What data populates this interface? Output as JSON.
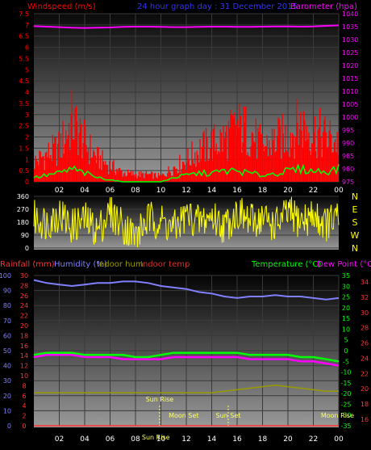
{
  "chart_data": [
    {
      "type": "bar",
      "title": "24 hour graph day : 31 December 2015",
      "left_axis_label": "Windspeed (m/s)",
      "right_axis_label": "Barometer (hpa)",
      "x_ticks": [
        "02",
        "04",
        "06",
        "08",
        "10",
        "12",
        "14",
        "16",
        "18",
        "20",
        "22",
        "00"
      ],
      "left_ticks": [
        "0",
        "0.5",
        "1",
        "1.5",
        "2",
        "2.5",
        "3",
        "3.5",
        "4",
        "4.5",
        "5",
        "5.5",
        "6",
        "6.5",
        "7",
        "7.5"
      ],
      "right_ticks": [
        "975",
        "980",
        "985",
        "990",
        "995",
        "1000",
        "1005",
        "1010",
        "1015",
        "1020",
        "1025",
        "1030",
        "1035",
        "1040"
      ],
      "ylim_left": [
        0,
        7.5
      ],
      "ylim_right": [
        975,
        1040
      ],
      "series": [
        {
          "label": "gust",
          "color": "#ff0000",
          "hours": [
            0,
            1,
            2,
            3,
            4,
            5,
            6,
            7,
            8,
            9,
            10,
            11,
            12,
            13,
            14,
            15,
            16,
            17,
            18,
            19,
            20,
            21,
            22,
            23,
            24
          ],
          "values": [
            1.1,
            1.5,
            1.9,
            3.4,
            2.2,
            1.3,
            0.9,
            0.5,
            0.4,
            0.4,
            0.3,
            0.8,
            1.2,
            1.8,
            2.1,
            2.4,
            3.0,
            2.8,
            1.9,
            2.3,
            2.6,
            3.2,
            2.8,
            2.5,
            2.2
          ]
        },
        {
          "label": "wind",
          "color": "#00ff00",
          "hours": [
            0,
            1,
            2,
            3,
            4,
            5,
            6,
            7,
            8,
            9,
            10,
            11,
            12,
            13,
            14,
            15,
            16,
            17,
            18,
            19,
            20,
            21,
            22,
            23,
            24
          ],
          "values": [
            0.2,
            0.3,
            0.4,
            0.6,
            0.4,
            0.2,
            0.1,
            0.0,
            0.0,
            0.0,
            0.0,
            0.2,
            0.3,
            0.4,
            0.4,
            0.5,
            0.5,
            0.4,
            0.3,
            0.4,
            0.5,
            0.6,
            0.5,
            0.5,
            0.6
          ]
        },
        {
          "label": "barometer",
          "color": "#ff00ff",
          "hours": [
            0,
            1,
            2,
            3,
            4,
            5,
            6,
            7,
            8,
            9,
            10,
            11,
            12,
            13,
            14,
            15,
            16,
            17,
            18,
            19,
            20,
            21,
            22,
            23,
            24
          ],
          "values": [
            1035.2,
            1035.0,
            1034.8,
            1034.6,
            1034.5,
            1034.6,
            1034.7,
            1034.9,
            1035.0,
            1035.0,
            1034.9,
            1034.8,
            1034.8,
            1034.9,
            1035.0,
            1035.0,
            1034.9,
            1034.9,
            1035.0,
            1035.1,
            1035.1,
            1035.0,
            1035.1,
            1035.3,
            1035.5
          ]
        }
      ]
    },
    {
      "type": "line",
      "label": "wind direction",
      "left_ticks": [
        "0",
        "90",
        "180",
        "270",
        "360"
      ],
      "right_labels": [
        "N",
        "W",
        "S",
        "E",
        "N"
      ],
      "ylim": [
        0,
        360
      ],
      "series": [
        {
          "color": "#ffff00",
          "hours": [
            0,
            1,
            2,
            3,
            4,
            5,
            6,
            7,
            8,
            9,
            10,
            11,
            12,
            13,
            14,
            15,
            16,
            17,
            18,
            19,
            20,
            21,
            22,
            23,
            24
          ],
          "values": [
            210,
            180,
            240,
            150,
            200,
            120,
            250,
            160,
            80,
            200,
            190,
            130,
            230,
            180,
            220,
            150,
            250,
            180,
            210,
            160,
            240,
            190,
            220,
            170,
            200
          ]
        }
      ]
    },
    {
      "type": "line",
      "legend": [
        "Rainfall (mm)",
        "Humidity (%)",
        "Indoor hum",
        "Indoor temp",
        "Temperature (°C)",
        "Dew Point (°C)"
      ],
      "x_ticks": [
        "02",
        "04",
        "06",
        "08",
        "10",
        "12",
        "14",
        "16",
        "18",
        "20",
        "22",
        "00"
      ],
      "humidity_ticks": [
        "0",
        "10",
        "20",
        "30",
        "40",
        "50",
        "60",
        "70",
        "80",
        "90",
        "100"
      ],
      "rain_ticks": [
        "0",
        "2",
        "4",
        "6",
        "8",
        "10",
        "12",
        "14",
        "16",
        "18",
        "20",
        "22",
        "24",
        "26",
        "28",
        "30"
      ],
      "temp_ticks": [
        "-35",
        "-30",
        "-25",
        "-20",
        "-15",
        "-10",
        "-5",
        "0",
        "5",
        "10",
        "15",
        "20",
        "25",
        "30",
        "35"
      ],
      "dew_ticks": [
        "16",
        "18",
        "20",
        "22",
        "24",
        "26",
        "28",
        "30",
        "32",
        "34"
      ],
      "ylim_humidity": [
        0,
        100
      ],
      "ylim_temp": [
        -35,
        35
      ],
      "annotations": [
        {
          "label": "Sun Rise",
          "hour": 9.9
        },
        {
          "label": "Sun Set",
          "hour": 15.3
        },
        {
          "label": "Moon Set",
          "hour": 11.8
        },
        {
          "label": "Moon Rise",
          "hour": 23.9
        },
        {
          "label": "Sun Rise",
          "hour": 9.6
        }
      ],
      "series": [
        {
          "label": "Humidity (%)",
          "color": "#8080ff",
          "hours": [
            0,
            1,
            2,
            3,
            4,
            5,
            6,
            7,
            8,
            9,
            10,
            11,
            12,
            13,
            14,
            15,
            16,
            17,
            18,
            19,
            20,
            21,
            22,
            23,
            24
          ],
          "values": [
            97,
            95,
            94,
            93,
            94,
            95,
            95,
            96,
            96,
            95,
            93,
            92,
            91,
            89,
            88,
            86,
            85,
            86,
            86,
            87,
            86,
            86,
            85,
            84,
            85
          ]
        },
        {
          "label": "Temperature (°C)",
          "color": "#00ff00",
          "hours": [
            0,
            1,
            2,
            3,
            4,
            5,
            6,
            7,
            8,
            9,
            10,
            11,
            12,
            13,
            14,
            15,
            16,
            17,
            18,
            19,
            20,
            21,
            22,
            23,
            24
          ],
          "values": [
            -2,
            -1,
            -1,
            -1,
            -2,
            -2,
            -2,
            -2,
            -3,
            -3,
            -2,
            -1,
            -1,
            -1,
            -1,
            -1,
            -1,
            -2,
            -2,
            -2,
            -2,
            -3,
            -3,
            -4,
            -5
          ]
        },
        {
          "label": "Dew Point (°C)",
          "color": "#ff00ff",
          "hours": [
            0,
            1,
            2,
            3,
            4,
            5,
            6,
            7,
            8,
            9,
            10,
            11,
            12,
            13,
            14,
            15,
            16,
            17,
            18,
            19,
            20,
            21,
            22,
            23,
            24
          ],
          "values": [
            -3,
            -2,
            -2,
            -2,
            -3,
            -3,
            -3,
            -4,
            -4,
            -4,
            -4,
            -3,
            -3,
            -3,
            -3,
            -3,
            -3,
            -4,
            -4,
            -4,
            -4,
            -5,
            -5,
            -6,
            -7
          ]
        },
        {
          "label": "Indoor hum",
          "color": "#999900",
          "hours": [
            0,
            1,
            2,
            3,
            4,
            5,
            6,
            7,
            8,
            9,
            10,
            11,
            12,
            13,
            14,
            15,
            16,
            17,
            18,
            19,
            20,
            21,
            22,
            23,
            24
          ],
          "values": [
            22,
            22,
            22,
            22,
            22,
            22,
            22,
            22,
            22,
            22,
            22,
            22,
            22,
            22,
            22,
            23,
            24,
            25,
            26,
            27,
            26,
            25,
            24,
            23,
            23
          ]
        },
        {
          "label": "Rainfall (mm)",
          "color": "#ff3333",
          "hours": [
            0,
            24
          ],
          "values": [
            0,
            0
          ]
        }
      ]
    }
  ]
}
